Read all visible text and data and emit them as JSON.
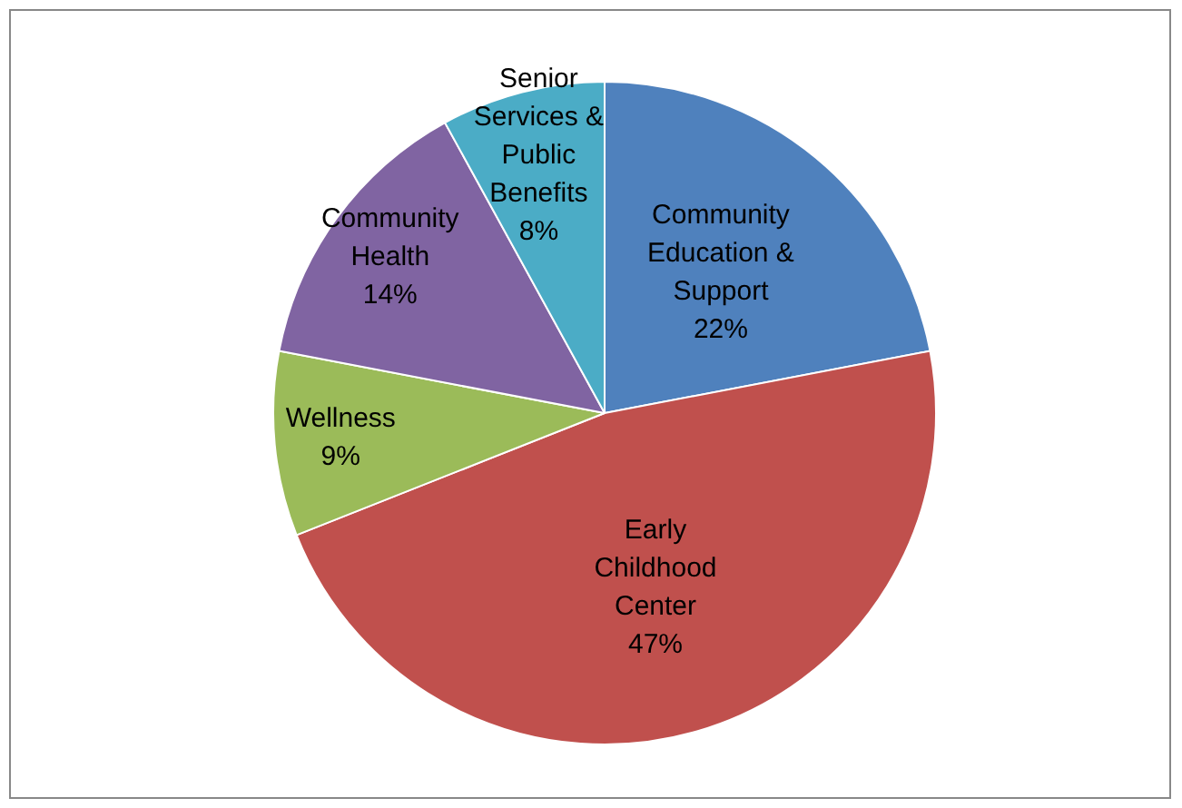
{
  "chart_data": {
    "type": "pie",
    "categories": [
      "Community Education & Support",
      "Early Childhood Center",
      "Wellness",
      "Community Health",
      "Senior Services & Public Benefits"
    ],
    "values": [
      22,
      47,
      9,
      14,
      8
    ],
    "colors": [
      "#4f81bd",
      "#c0504d",
      "#9bbb59",
      "#8064a2",
      "#4bacc6"
    ],
    "value_labels": [
      "22%",
      "47%",
      "9%",
      "14%",
      "8%"
    ],
    "legend": false
  }
}
